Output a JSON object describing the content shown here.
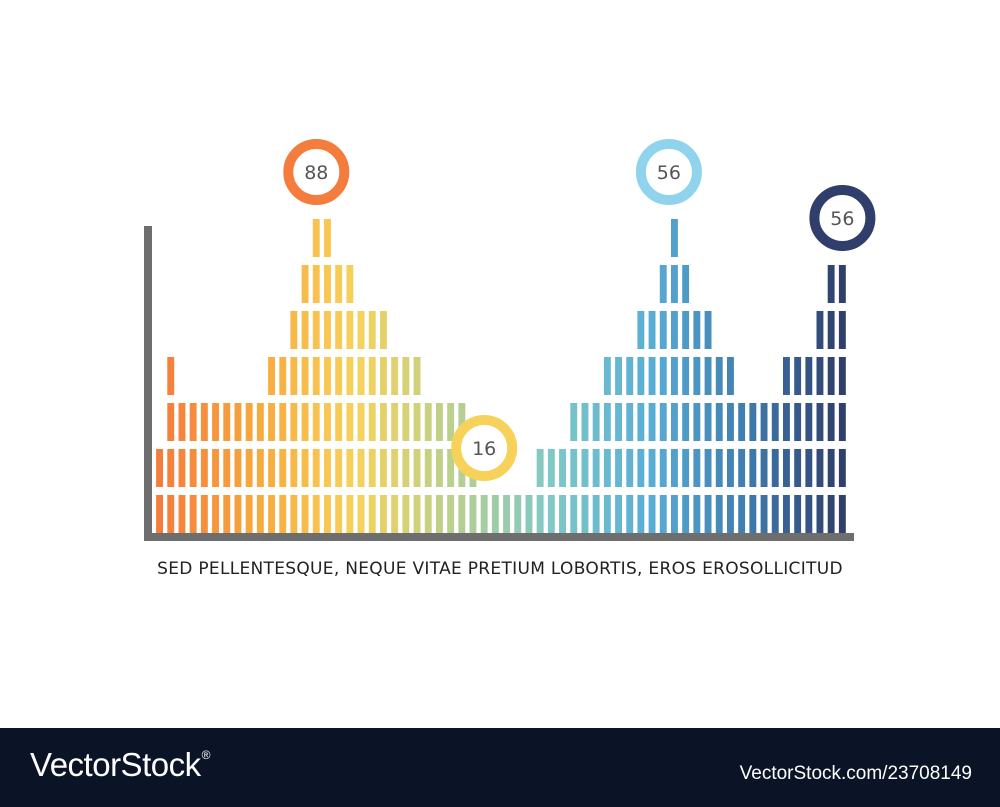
{
  "chart_data": {
    "type": "bar",
    "title": "",
    "xlabel": "",
    "ylabel": "",
    "ylim": [
      0,
      100
    ],
    "grid": false,
    "levels": [
      2,
      4,
      3,
      3,
      3,
      3,
      3,
      3,
      3,
      3,
      4,
      4,
      5,
      6,
      7,
      7,
      6,
      6,
      5,
      5,
      5,
      4,
      4,
      4,
      3,
      3,
      3,
      3,
      2,
      1,
      1,
      1,
      1,
      1,
      2,
      2,
      2,
      3,
      3,
      3,
      4,
      4,
      4,
      5,
      5,
      6,
      7,
      6,
      5,
      5,
      4,
      4,
      3,
      3,
      3,
      3,
      4,
      4,
      4,
      5,
      6,
      6
    ],
    "level_max": 7,
    "callouts": [
      {
        "label": "88",
        "value": 88,
        "color": "#f47c3c"
      },
      {
        "label": "16",
        "value": 16,
        "color": "#f7d25a"
      },
      {
        "label": "56",
        "value": 56,
        "color": "#8fd3ec"
      },
      {
        "label": "56",
        "value": 56,
        "color": "#2f3e6b"
      }
    ],
    "gradient": [
      "#f47c3c",
      "#f7a93d",
      "#f7d25a",
      "#b9d08e",
      "#7fc8c6",
      "#5aaed6",
      "#3f7db0",
      "#2f3e6b"
    ],
    "axis_color": "#6e6e6e"
  },
  "caption": "SED PELLENTESQUE, NEQUE VITAE PRETIUM LOBORTIS, EROS EROSOLLICITUD",
  "footer": {
    "logo": "VectorStock",
    "registered": "®",
    "image_id": "VectorStock.com/23708149"
  }
}
